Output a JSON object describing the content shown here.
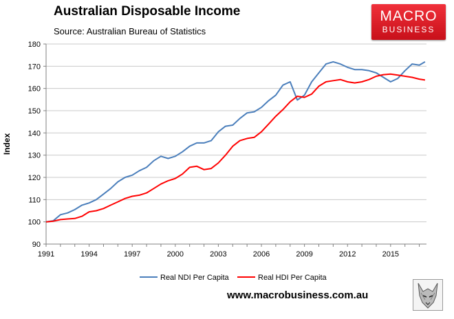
{
  "header": {
    "title": "Australian Disposable Income",
    "source": "Source: Australian Bureau of Statistics"
  },
  "logo": {
    "line1": "MACRO",
    "line2": "BUSINESS"
  },
  "footer": {
    "url": "www.macrobusiness.com.au"
  },
  "chart_data": {
    "type": "line",
    "title": "Australian Disposable Income",
    "xlabel": "",
    "ylabel": "Index",
    "xlim": [
      1991,
      2017.5
    ],
    "ylim": [
      90,
      180
    ],
    "yticks": [
      90,
      100,
      110,
      120,
      130,
      140,
      150,
      160,
      170,
      180
    ],
    "xticks": [
      1991,
      1994,
      1997,
      2000,
      2003,
      2006,
      2009,
      2012,
      2015
    ],
    "grid": "horizontal",
    "legend": "bottom-center",
    "series": [
      {
        "name": "Real NDI Per Capita",
        "color": "#4a7ebb",
        "x": [
          1991,
          1991.5,
          1992,
          1992.5,
          1993,
          1993.5,
          1994,
          1994.5,
          1995,
          1995.5,
          1996,
          1996.5,
          1997,
          1997.5,
          1998,
          1998.5,
          1999,
          1999.5,
          2000,
          2000.5,
          2001,
          2001.5,
          2002,
          2002.5,
          2003,
          2003.5,
          2004,
          2004.5,
          2005,
          2005.5,
          2006,
          2006.5,
          2007,
          2007.5,
          2008,
          2008.5,
          2009,
          2009.5,
          2010,
          2010.5,
          2011,
          2011.5,
          2012,
          2012.5,
          2013,
          2013.5,
          2014,
          2014.5,
          2015,
          2015.5,
          2016,
          2016.5,
          2017,
          2017.4
        ],
        "values": [
          100,
          100.5,
          103.2,
          104,
          105.5,
          107.5,
          108.5,
          110,
          112.5,
          115,
          118,
          120,
          121,
          123,
          124.5,
          127.5,
          129.5,
          128.5,
          129.5,
          131.5,
          134,
          135.5,
          135.5,
          136.5,
          140.5,
          143,
          143.5,
          146.5,
          149,
          149.5,
          151.5,
          154.5,
          157,
          161.5,
          163,
          154.8,
          157,
          163,
          167,
          171,
          172,
          171,
          169.5,
          168.5,
          168.5,
          168,
          167,
          165,
          163,
          164.5,
          168,
          171,
          170.5,
          172
        ]
      },
      {
        "name": "Real HDI Per Capita",
        "color": "#ff0000",
        "x": [
          1991,
          1991.5,
          1992,
          1992.5,
          1993,
          1993.5,
          1994,
          1994.5,
          1995,
          1995.5,
          1996,
          1996.5,
          1997,
          1997.5,
          1998,
          1998.5,
          1999,
          1999.5,
          2000,
          2000.5,
          2001,
          2001.5,
          2002,
          2002.5,
          2003,
          2003.5,
          2004,
          2004.5,
          2005,
          2005.5,
          2006,
          2006.5,
          2007,
          2007.5,
          2008,
          2008.5,
          2009,
          2009.5,
          2010,
          2010.5,
          2011,
          2011.5,
          2012,
          2012.5,
          2013,
          2013.5,
          2014,
          2014.5,
          2015,
          2015.5,
          2016,
          2016.5,
          2017,
          2017.4
        ],
        "values": [
          100,
          100.3,
          101,
          101.3,
          101.5,
          102.5,
          104.5,
          105,
          106,
          107.5,
          109,
          110.5,
          111.5,
          112,
          113,
          115,
          117,
          118.5,
          119.5,
          121.5,
          124.5,
          125,
          123.5,
          124,
          126.5,
          130,
          134,
          136.5,
          137.5,
          138,
          140.5,
          144,
          147.5,
          150.5,
          154,
          156.5,
          156,
          157.5,
          161,
          163,
          163.5,
          164,
          163,
          162.5,
          163,
          164,
          165.5,
          166.2,
          166.5,
          166,
          165.5,
          165,
          164.2,
          163.8
        ]
      }
    ]
  }
}
